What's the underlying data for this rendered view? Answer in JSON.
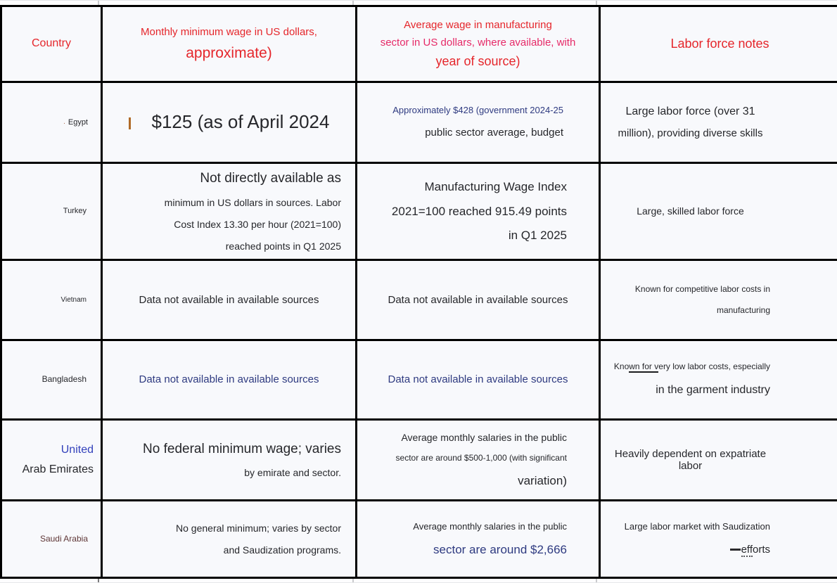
{
  "colors": {
    "red": "#e5262b",
    "pink": "#e62a68",
    "navy": "#2e3a80",
    "blue": "#3240bb",
    "maroon": "#5f3737",
    "dark": "#26272b",
    "cursor": "#b06a28",
    "border": "#000000",
    "cell_bg": "#f8f9fc"
  },
  "header": {
    "country": "Country",
    "min_wage_l1": "Monthly minimum wage in US dollars,",
    "min_wage_l2": "approximate)",
    "avg_wage_l1": "Average wage in manufacturing",
    "avg_wage_l2": "sector in US dollars, where available, with",
    "avg_wage_l3": "year of source)",
    "notes": "Labor force notes"
  },
  "rows": {
    "egypt": {
      "country_mark": ".",
      "country": "Egypt",
      "min_wage": "$125 (as of April 2024",
      "avg_l1": "Approximately $428 (government 2024-25",
      "avg_l2": "public sector average, budget",
      "notes_l1": "Large labor force (over 31",
      "notes_l2": "million), providing diverse skills"
    },
    "turkey": {
      "country": "Turkey",
      "min_l1": "Not directly available as",
      "min_l2": "minimum in US dollars in sources. Labor",
      "min_l3": "Cost Index 13.30 per hour (2021=100)",
      "min_l4": "reached points in Q1 2025",
      "avg_l1": "Manufacturing Wage Index",
      "avg_l2": "2021=100 reached 915.49 points",
      "avg_l3": "in Q1 2025",
      "notes": "Large, skilled labor force"
    },
    "vietnam": {
      "country": "Vietnam",
      "min_wage": "Data not available in available sources",
      "avg_wage": "Data not available in available sources",
      "notes_l1": "Known for competitive labor costs in",
      "notes_l2": "manufacturing"
    },
    "bangladesh": {
      "country": "Bangladesh",
      "min_wage": "Data not available in available sources",
      "avg_wage": "Data not available in available sources",
      "notes_l1_p1": "Kno",
      "notes_l1_p2": "wn for v",
      "notes_l1_p3": "ery low labor costs, especially",
      "notes_l2": "in the garment industry"
    },
    "uae": {
      "country_l1": "United",
      "country_l2": "Arab Emirates",
      "min_l1": "No federal minimum wage; varies",
      "min_l2": "by emirate and sector.",
      "avg_l1": "Average monthly salaries in the public",
      "avg_l2": "sector are around $500-1,000 (with significant",
      "avg_l3": "variation)",
      "notes": "Heavily dependent on expatriate labor"
    },
    "saudi": {
      "country": "Saudi Arabia",
      "min_l1": "No general minimum; varies by sector",
      "min_l2": "and Saudization programs.",
      "avg_l1": "Average monthly salaries in the public",
      "avg_l2": "sector are around $2,666",
      "notes_l1": "Large labor market with Saudization",
      "notes_l2_p1": "eff",
      "notes_l2_p2": "orts"
    }
  }
}
